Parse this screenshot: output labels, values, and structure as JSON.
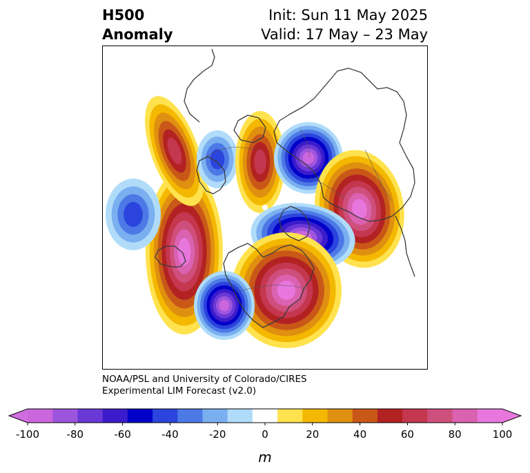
{
  "header": {
    "title_line1": "H500",
    "title_line2": "Anomaly",
    "init_line": "Init: Sun 11 May 2025",
    "valid_line": "Valid: 17 May – 23 May"
  },
  "credit": {
    "line1": "NOAA/PSL and University of Colorado/CIRES",
    "line2": "Experimental LIM Forecast (v2.0)"
  },
  "colorbar": {
    "unit": "m",
    "ticks": [
      "-100",
      "-80",
      "-60",
      "-40",
      "-20",
      "0",
      "20",
      "40",
      "60",
      "80",
      "100"
    ],
    "colors": [
      "#cc66dd",
      "#9d55dd",
      "#6a38d6",
      "#3b1ccc",
      "#0000c8",
      "#2b44dd",
      "#4c79e6",
      "#7aaff0",
      "#b0dcfa",
      "#ffffff",
      "#ffe24d",
      "#f4b800",
      "#e09010",
      "#c95818",
      "#b32222",
      "#c4374f",
      "#cf4f7c",
      "#da62b0",
      "#e777dd"
    ],
    "under_color": "#d06ee0",
    "over_color": "#e777dd"
  },
  "map": {
    "projection": "north polar stereographic",
    "features": [
      {
        "id": "west-pacific-ridge",
        "sign": "positive",
        "peak": 100
      },
      {
        "id": "aleutian-trough",
        "sign": "negative",
        "peak": -40
      },
      {
        "id": "alaska-ridge",
        "sign": "positive",
        "peak": 60
      },
      {
        "id": "siberian-trough",
        "sign": "negative",
        "peak": -40
      },
      {
        "id": "arctic-ridge",
        "sign": "positive",
        "peak": 60
      },
      {
        "id": "scandinavian-trough",
        "sign": "negative",
        "peak": -100
      },
      {
        "id": "ural-ridge",
        "sign": "positive",
        "peak": 100
      },
      {
        "id": "europe-trough",
        "sign": "negative",
        "peak": -100
      },
      {
        "id": "canada-ridge",
        "sign": "positive",
        "peak": 100
      },
      {
        "id": "northeast-pacific-trough",
        "sign": "negative",
        "peak": -100
      }
    ]
  }
}
